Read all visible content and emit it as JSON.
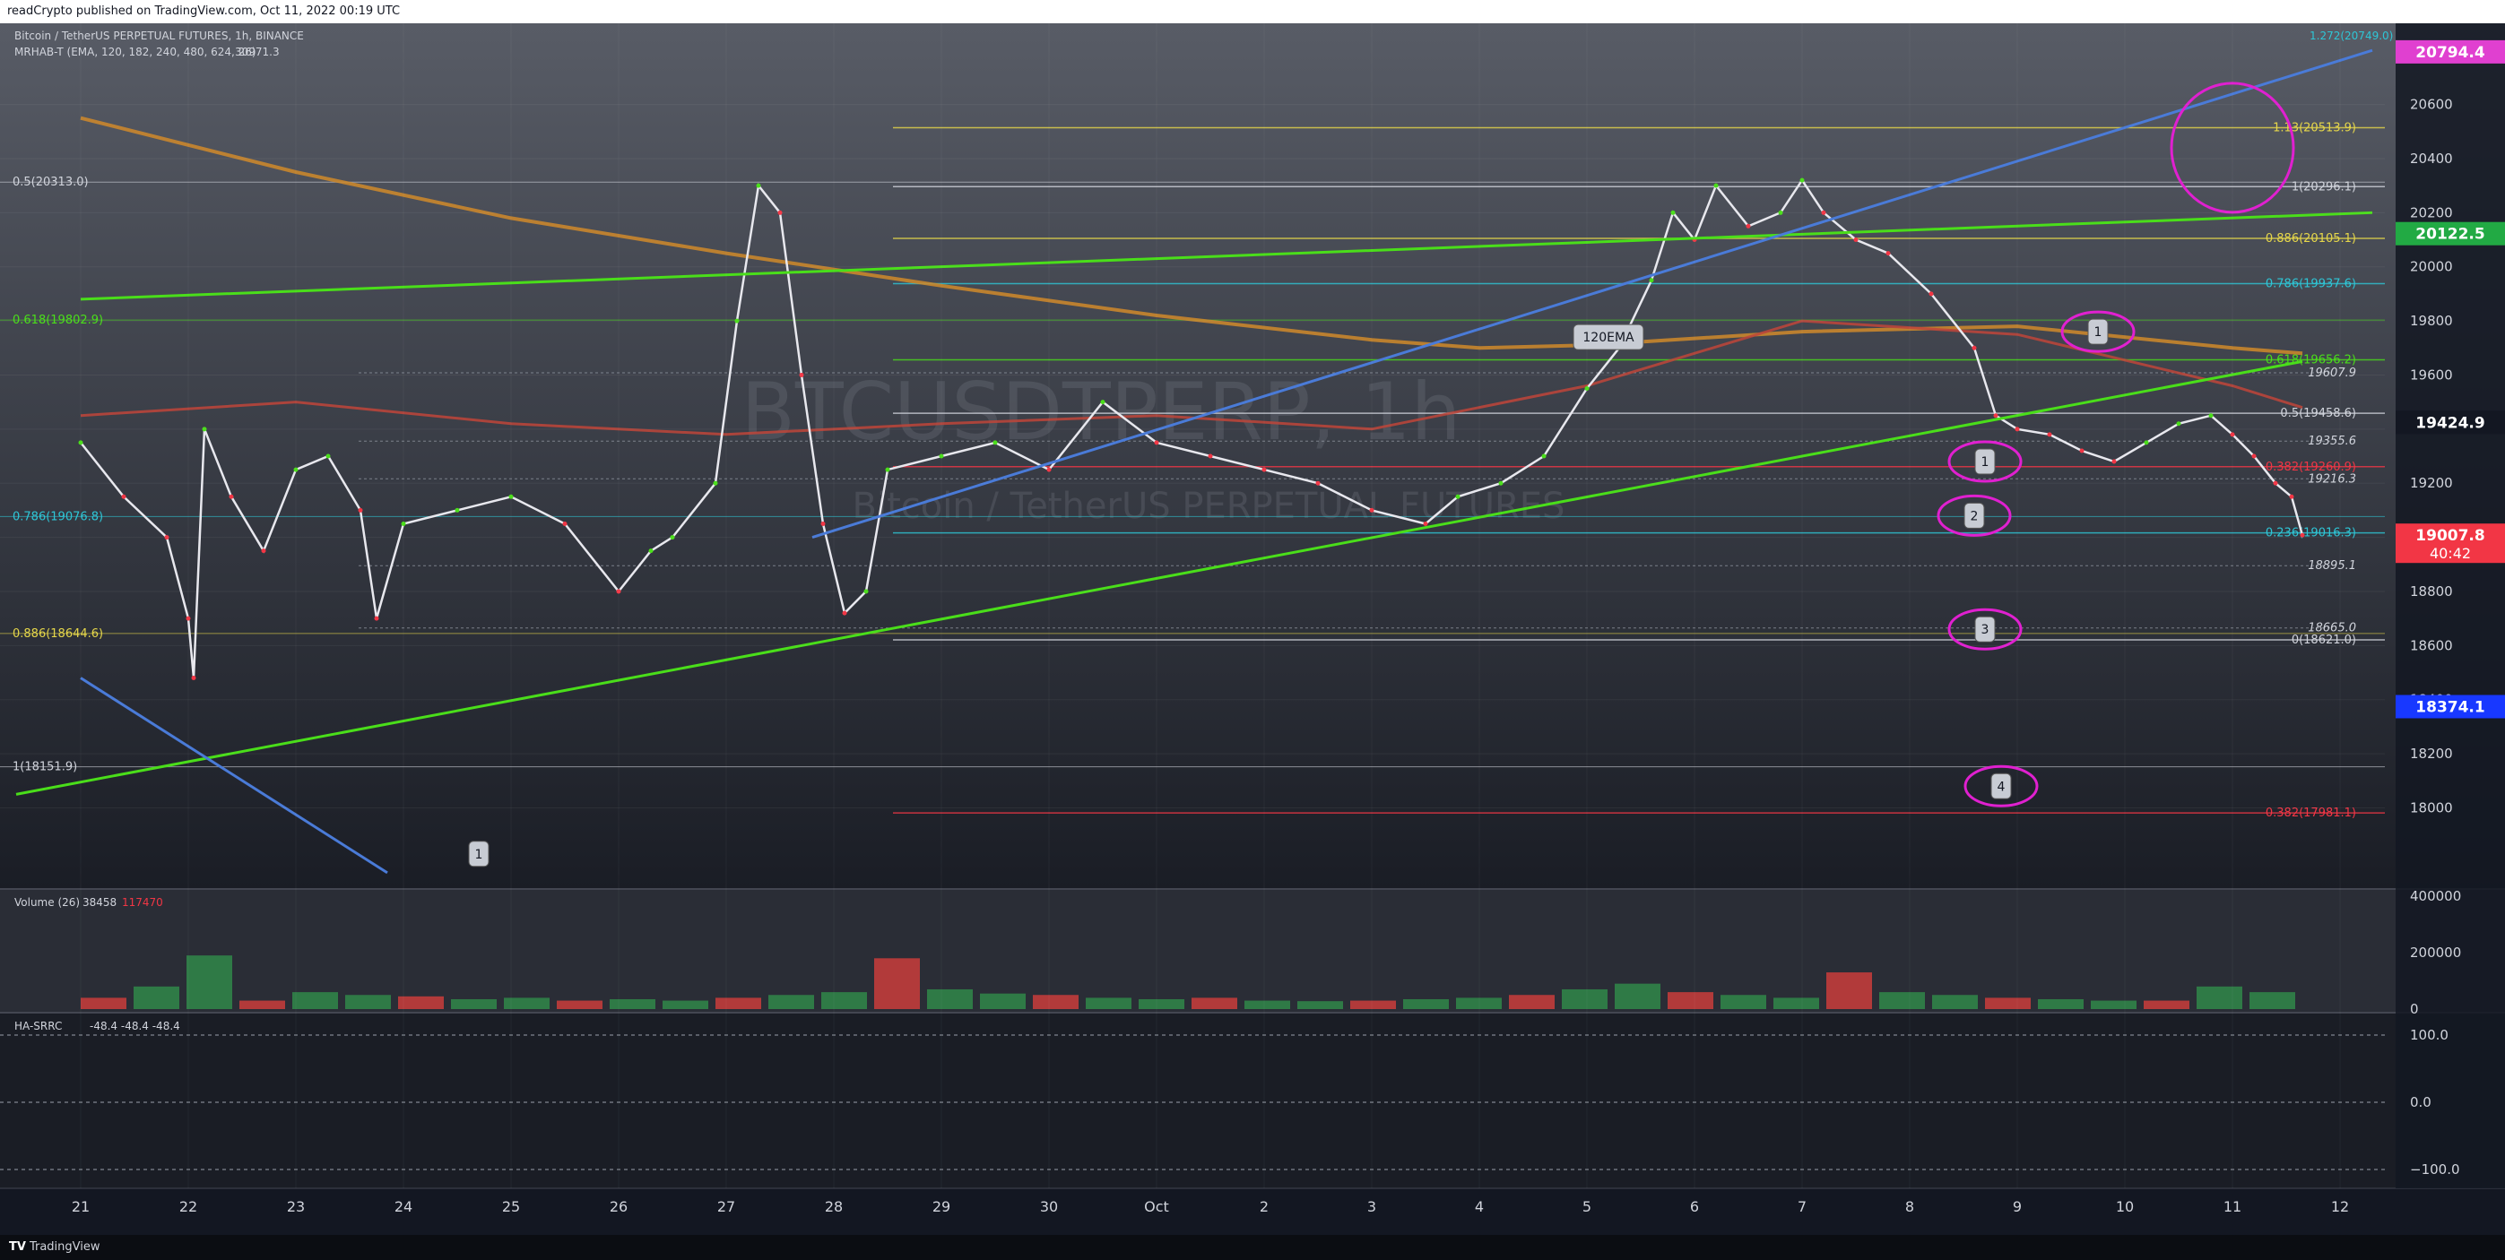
{
  "header": {
    "published_text": "readCrypto published on TradingView.com, Oct 11, 2022 00:19 UTC"
  },
  "footer": {
    "brand": "TradingView"
  },
  "legend": {
    "main_title": "Bitcoin / TetherUS PERPETUAL FUTURES, 1h, BINANCE",
    "mrhab_label": "MRHAB-T (EMA, 120, 182, 240, 480, 624, 26)",
    "mrhab_value": "30971.3",
    "volume_label": "Volume (26)",
    "volume_value": "38458",
    "volume_value2": "117470",
    "oscillator_label": "HA-SRRC",
    "oscillator_values": "-48.4  -48.4  -48.4"
  },
  "watermark": {
    "symbol": "BTCUSDTPERP, 1h",
    "name": "Bitcoin / TetherUS PERPETUAL FUTURES"
  },
  "colors": {
    "background": "#131722",
    "green_trend": "#4ade1a",
    "blue_trend": "#4a7bd8",
    "fib_yellow": "#e6d74a",
    "fib_cyan": "#2ec6d6",
    "fib_red": "#f23645",
    "magenta": "#e020d0",
    "ema_orange": "#d08a2a",
    "ema_red": "#c0453a",
    "volume_red": "#b23a3a",
    "volume_green": "#2f7a46"
  },
  "chart_data": {
    "type": "line",
    "title": "Bitcoin / TetherUS PERPETUAL FUTURES, 1h, BINANCE",
    "xlabel": "",
    "ylabel": "",
    "ylim": [
      17700,
      20900
    ],
    "x_ticks": [
      "21",
      "22",
      "23",
      "24",
      "25",
      "26",
      "27",
      "28",
      "29",
      "30",
      "Oct",
      "2",
      "3",
      "4",
      "5",
      "6",
      "7",
      "8",
      "9",
      "10",
      "11",
      "12"
    ],
    "y_ticks": [
      18000,
      18200,
      18400,
      18600,
      18800,
      19000,
      19200,
      19400,
      19600,
      19800,
      20000,
      20200,
      20400,
      20600
    ],
    "price_path": {
      "x": [
        0,
        0.4,
        0.8,
        1.0,
        1.05,
        1.15,
        1.4,
        1.7,
        2.0,
        2.3,
        2.6,
        2.75,
        3.0,
        3.5,
        4.0,
        4.5,
        5.0,
        5.3,
        5.5,
        5.9,
        6.1,
        6.3,
        6.5,
        6.7,
        6.9,
        7.1,
        7.3,
        7.5,
        8.0,
        8.5,
        9.0,
        9.5,
        10.0,
        10.5,
        11.0,
        11.5,
        12.0,
        12.5,
        12.8,
        13.2,
        13.6,
        14.0,
        14.3,
        14.6,
        14.8,
        15.0,
        15.2,
        15.5,
        15.8,
        16.0,
        16.2,
        16.5,
        16.8,
        17.2,
        17.6,
        17.8,
        18.0,
        18.3,
        18.6,
        18.9,
        19.2,
        19.5,
        19.8,
        20.0,
        20.2,
        20.4,
        20.55,
        20.65
      ],
      "y": [
        19350,
        19150,
        19000,
        18700,
        18480,
        19400,
        19150,
        18950,
        19250,
        19300,
        19100,
        18700,
        19050,
        19100,
        19150,
        19050,
        18800,
        18950,
        19000,
        19200,
        19800,
        20300,
        20200,
        19600,
        19050,
        18720,
        18800,
        19250,
        19300,
        19350,
        19250,
        19500,
        19350,
        19300,
        19250,
        19200,
        19100,
        19050,
        19150,
        19200,
        19300,
        19550,
        19700,
        19950,
        20200,
        20100,
        20300,
        20150,
        20200,
        20320,
        20200,
        20100,
        20050,
        19900,
        19700,
        19450,
        19400,
        19380,
        19320,
        19280,
        19350,
        19420,
        19450,
        19380,
        19300,
        19200,
        19150,
        19007.8
      ]
    },
    "series": [
      {
        "name": "120EMA",
        "x": [
          0,
          2,
          4,
          6,
          8,
          10,
          12,
          14,
          16,
          18,
          20,
          20.65
        ],
        "y": [
          19450,
          19500,
          19420,
          19380,
          19420,
          19450,
          19400,
          19560,
          19800,
          19750,
          19560,
          19480
        ]
      }
    ],
    "ema_slow": {
      "x": [
        0,
        2,
        4,
        6,
        8,
        10,
        12,
        13,
        14,
        16,
        18,
        20,
        20.65
      ],
      "y": [
        20550,
        20350,
        20180,
        20050,
        19930,
        19820,
        19730,
        19700,
        19710,
        19760,
        19780,
        19700,
        19680
      ]
    },
    "volume": {
      "ylim": [
        0,
        400000
      ],
      "y_ticks": [
        0,
        200000,
        400000
      ],
      "values": [
        40000,
        80000,
        190000,
        30000,
        60000,
        50000,
        45000,
        35000,
        40000,
        30000,
        35000,
        30000,
        40000,
        50000,
        60000,
        180000,
        70000,
        55000,
        50000,
        40000,
        35000,
        40000,
        30000,
        28000,
        30000,
        35000,
        40000,
        50000,
        70000,
        90000,
        60000,
        50000,
        40000,
        130000,
        60000,
        50000,
        40000,
        35000,
        30000,
        30000,
        80000,
        60000
      ]
    },
    "oscillator": {
      "ylim": [
        -120,
        120
      ],
      "y_ticks": [
        100,
        0,
        -100
      ],
      "y_tick_labels": [
        "100.0",
        "0.0",
        "−100.0"
      ]
    },
    "price_labels": [
      {
        "value": 20794.4,
        "label": "20794.4",
        "color": "#e040d0"
      },
      {
        "value": 20122.5,
        "label": "20122.5",
        "color": "#22aa44"
      },
      {
        "value": 19424.9,
        "label": "19424.9",
        "color": "#131722"
      },
      {
        "value": 19007.8,
        "label": "19007.8",
        "sublabel": "40:42",
        "color": "#f23645"
      },
      {
        "value": 18374.1,
        "label": "18374.1",
        "color": "#1838ff"
      }
    ],
    "fib_levels_right": [
      {
        "value": 20513.9,
        "label": "1.13(20513.9)",
        "color": "#e6d74a"
      },
      {
        "value": 20296.1,
        "label": "1(20296.1)",
        "color": "#d1d4dc"
      },
      {
        "value": 20105.1,
        "label": "0.886(20105.1)",
        "color": "#e6d74a"
      },
      {
        "value": 19937.6,
        "label": "0.786(19937.6)",
        "color": "#2ec6d6"
      },
      {
        "value": 19656.2,
        "label": "0.618(19656.2)",
        "color": "#4ade1a"
      },
      {
        "value": 19458.6,
        "label": "0.5(19458.6)",
        "color": "#d1d4dc"
      },
      {
        "value": 19260.9,
        "label": "0.382(19260.9)",
        "color": "#f23645"
      },
      {
        "value": 19016.3,
        "label": "0.236(19016.3)",
        "color": "#2ec6d6"
      },
      {
        "value": 18621.0,
        "label": "0(18621.0)",
        "color": "#d1d4dc"
      },
      {
        "value": 17981.1,
        "label": "0.382(17981.1)",
        "color": "#f23645"
      }
    ],
    "fib_levels_left": [
      {
        "value": 20313.0,
        "label": "0.5(20313.0)",
        "color": "#d1d4dc"
      },
      {
        "value": 19802.9,
        "label": "0.618(19802.9)",
        "color": "#4ade1a"
      },
      {
        "value": 19076.8,
        "label": "0.786(19076.8)",
        "color": "#2ec6d6"
      },
      {
        "value": 18644.6,
        "label": "0.886(18644.6)",
        "color": "#e6d74a"
      },
      {
        "value": 18151.9,
        "label": "1(18151.9)",
        "color": "#d1d4dc"
      }
    ],
    "plain_levels": [
      {
        "value": 19607.9,
        "label": "19607.9"
      },
      {
        "value": 19355.6,
        "label": "19355.6"
      },
      {
        "value": 19216.3,
        "label": "19216.3"
      },
      {
        "value": 18895.1,
        "label": "18895.1"
      },
      {
        "value": 18665.0,
        "label": "18665.0"
      }
    ],
    "top_left_fib_label": "1.272(20749.0)",
    "annotations": [
      {
        "text": "120EMA",
        "x": 14.2,
        "y": 19740
      },
      {
        "text": "1",
        "x": 17.7,
        "y": 19280
      },
      {
        "text": "1",
        "x": 18.75,
        "y": 19760
      },
      {
        "text": "2",
        "x": 17.6,
        "y": 19080
      },
      {
        "text": "3",
        "x": 17.7,
        "y": 18660
      },
      {
        "text": "4",
        "x": 17.85,
        "y": 18080
      },
      {
        "text": "1",
        "x": 3.7,
        "y": 17830
      }
    ],
    "trendlines": [
      {
        "name": "green-support",
        "x": [
          -0.6,
          20.65
        ],
        "y": [
          18050,
          19650
        ]
      },
      {
        "name": "green-resistance",
        "x": [
          0,
          21.3
        ],
        "y": [
          19880,
          20200
        ]
      },
      {
        "name": "blue-rising",
        "x": [
          6.8,
          21.3
        ],
        "y": [
          19000,
          20800
        ]
      },
      {
        "name": "blue-falling",
        "x": [
          0,
          2.85
        ],
        "y": [
          18480,
          17760
        ]
      }
    ]
  }
}
